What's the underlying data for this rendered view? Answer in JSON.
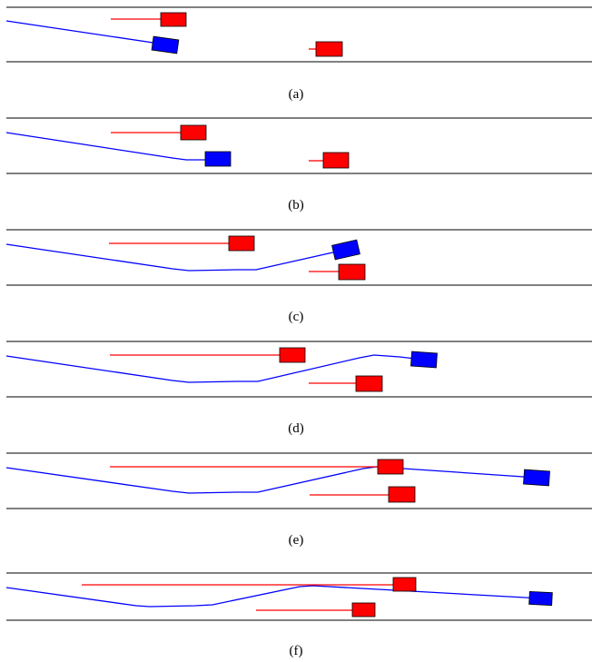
{
  "figure": {
    "colors": {
      "road_edge": "#000000",
      "ego_vehicle": "#0000ff",
      "other_vehicle": "#ff0000",
      "vehicle_outline": "#000000"
    },
    "panels": [
      {
        "caption": "(a)"
      },
      {
        "caption": "(b)"
      },
      {
        "caption": "(c)"
      },
      {
        "caption": "(d)"
      },
      {
        "caption": "(e)"
      },
      {
        "caption": "(f)"
      }
    ]
  }
}
